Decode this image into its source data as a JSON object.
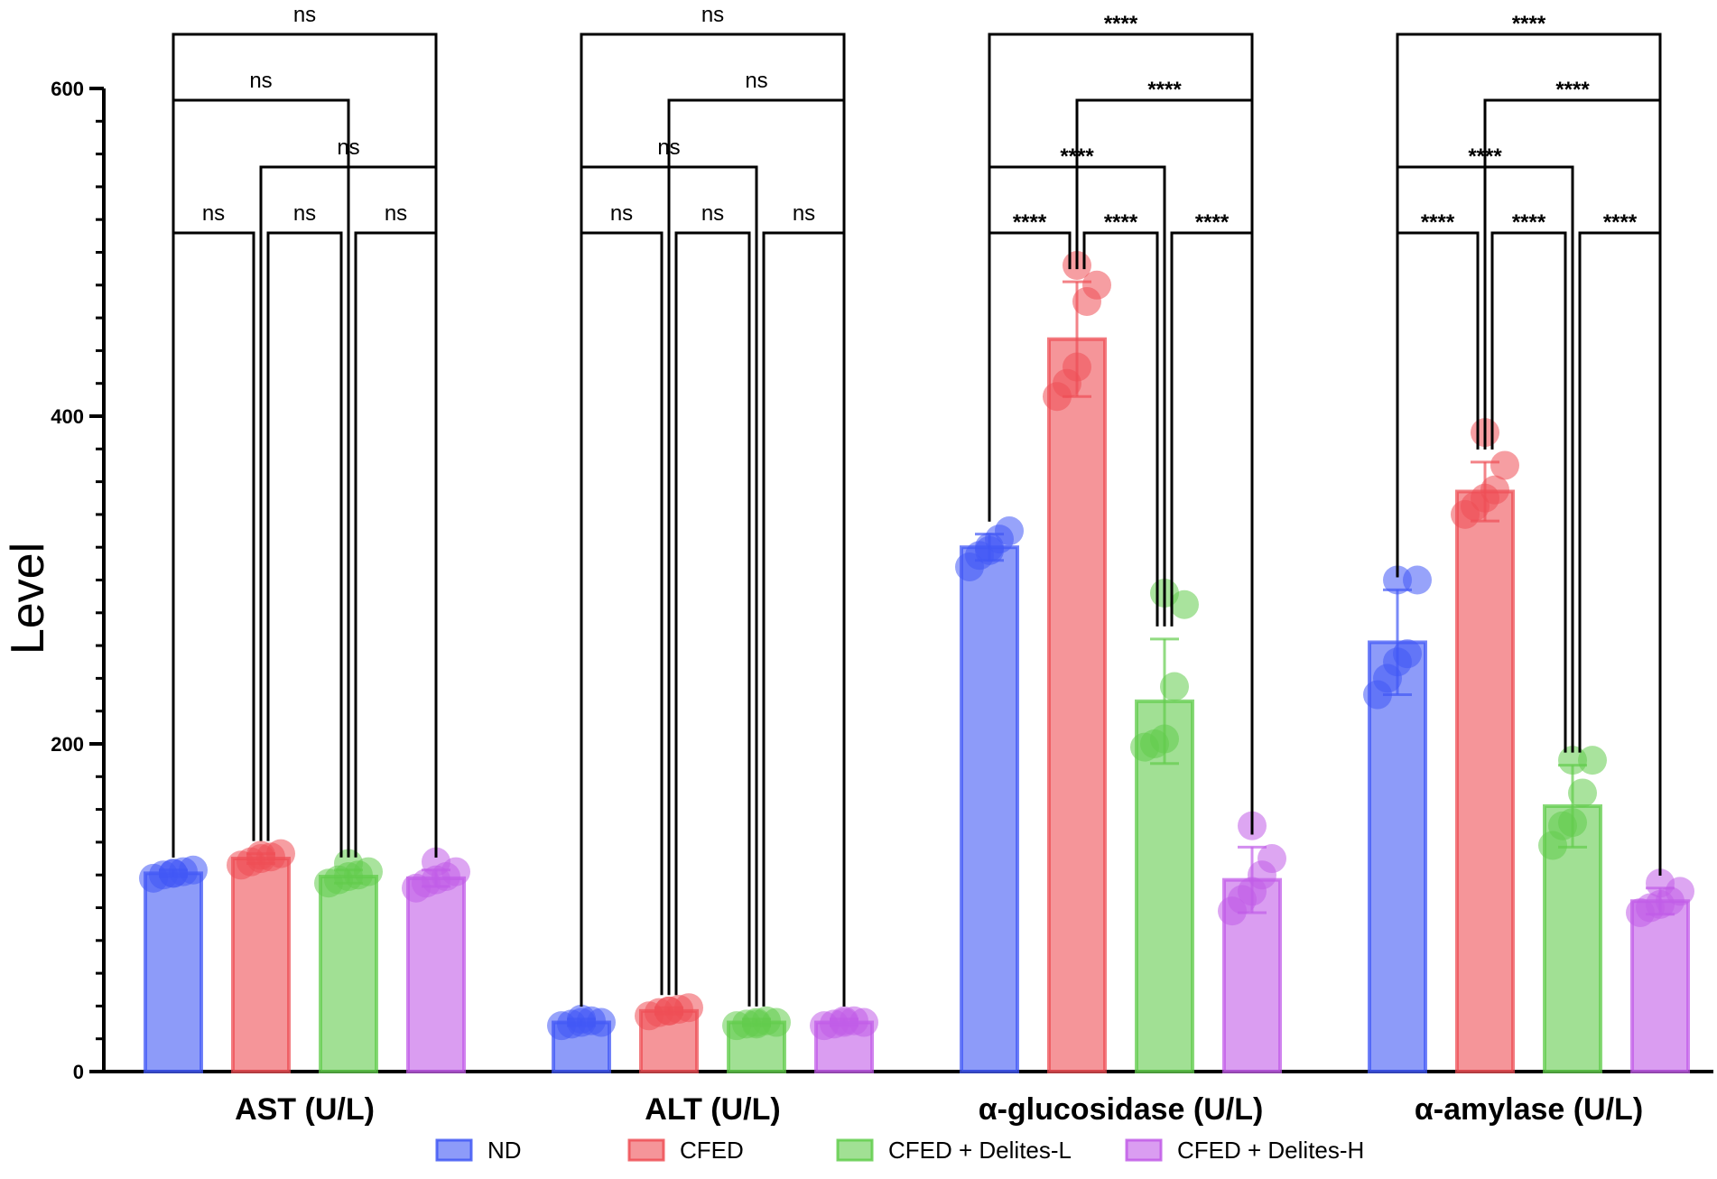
{
  "chart_data": {
    "type": "bar",
    "title": "",
    "xlabel": "",
    "ylabel": "Level",
    "ylim": [
      0,
      600
    ],
    "yticks": [
      0,
      200,
      400,
      600
    ],
    "grid": false,
    "legend_position": "bottom",
    "categories": [
      "AST (U/L)",
      "ALT (U/L)",
      "α-glucosidase (U/L)",
      "α-amylase (U/L)"
    ],
    "series": [
      {
        "name": "ND",
        "color": "#4158f5",
        "values": [
          121,
          30,
          320,
          262
        ],
        "errors": [
          2,
          2,
          8,
          32
        ],
        "points": [
          [
            118,
            120,
            121,
            122,
            123,
            121
          ],
          [
            28,
            29,
            30,
            31,
            30,
            32
          ],
          [
            308,
            315,
            320,
            325,
            330,
            318
          ],
          [
            230,
            240,
            250,
            255,
            300,
            300
          ]
        ]
      },
      {
        "name": "CFED",
        "color": "#ee4f55",
        "values": [
          130,
          37,
          447,
          354
        ],
        "errors": [
          3,
          2,
          35,
          18
        ],
        "points": [
          [
            126,
            128,
            130,
            131,
            133,
            132
          ],
          [
            34,
            36,
            37,
            38,
            39,
            37
          ],
          [
            412,
            420,
            430,
            470,
            480,
            492
          ],
          [
            340,
            345,
            350,
            355,
            370,
            390
          ]
        ]
      },
      {
        "name": "CFED + Delites-L",
        "color": "#62cc4c",
        "values": [
          119,
          30,
          226,
          162
        ],
        "errors": [
          4,
          2,
          38,
          25
        ],
        "points": [
          [
            115,
            117,
            119,
            120,
            122,
            127
          ],
          [
            28,
            29,
            30,
            31,
            30,
            29
          ],
          [
            198,
            200,
            203,
            235,
            285,
            292
          ],
          [
            138,
            150,
            152,
            170,
            190,
            190
          ]
        ]
      },
      {
        "name": "CFED + Delites-H",
        "color": "#c15ce8",
        "values": [
          118,
          30,
          117,
          104
        ],
        "errors": [
          5,
          2,
          20,
          8
        ],
        "points": [
          [
            112,
            115,
            117,
            119,
            122,
            128
          ],
          [
            28,
            29,
            30,
            31,
            30,
            31
          ],
          [
            98,
            105,
            110,
            120,
            130,
            150
          ],
          [
            97,
            100,
            102,
            104,
            110,
            115
          ]
        ]
      }
    ],
    "significance": [
      {
        "category": 0,
        "comparisons": [
          {
            "from": 0,
            "to": 1,
            "label": "ns"
          },
          {
            "from": 1,
            "to": 2,
            "label": "ns"
          },
          {
            "from": 2,
            "to": 3,
            "label": "ns"
          },
          {
            "from": 1,
            "to": 3,
            "label": "ns"
          },
          {
            "from": 0,
            "to": 2,
            "label": "ns"
          },
          {
            "from": 0,
            "to": 3,
            "label": "ns"
          }
        ]
      },
      {
        "category": 1,
        "comparisons": [
          {
            "from": 0,
            "to": 1,
            "label": "ns"
          },
          {
            "from": 1,
            "to": 2,
            "label": "ns"
          },
          {
            "from": 2,
            "to": 3,
            "label": "ns"
          },
          {
            "from": 0,
            "to": 2,
            "label": "ns"
          },
          {
            "from": 1,
            "to": 3,
            "label": "ns"
          },
          {
            "from": 0,
            "to": 3,
            "label": "ns"
          }
        ]
      },
      {
        "category": 2,
        "comparisons": [
          {
            "from": 0,
            "to": 1,
            "label": "****"
          },
          {
            "from": 1,
            "to": 2,
            "label": "****"
          },
          {
            "from": 2,
            "to": 3,
            "label": "****"
          },
          {
            "from": 0,
            "to": 2,
            "label": "****"
          },
          {
            "from": 1,
            "to": 3,
            "label": "****"
          },
          {
            "from": 0,
            "to": 3,
            "label": "****"
          }
        ]
      },
      {
        "category": 3,
        "comparisons": [
          {
            "from": 0,
            "to": 1,
            "label": "****"
          },
          {
            "from": 1,
            "to": 2,
            "label": "****"
          },
          {
            "from": 2,
            "to": 3,
            "label": "****"
          },
          {
            "from": 0,
            "to": 2,
            "label": "****"
          },
          {
            "from": 1,
            "to": 3,
            "label": "****"
          },
          {
            "from": 0,
            "to": 3,
            "label": "****"
          }
        ]
      }
    ]
  }
}
